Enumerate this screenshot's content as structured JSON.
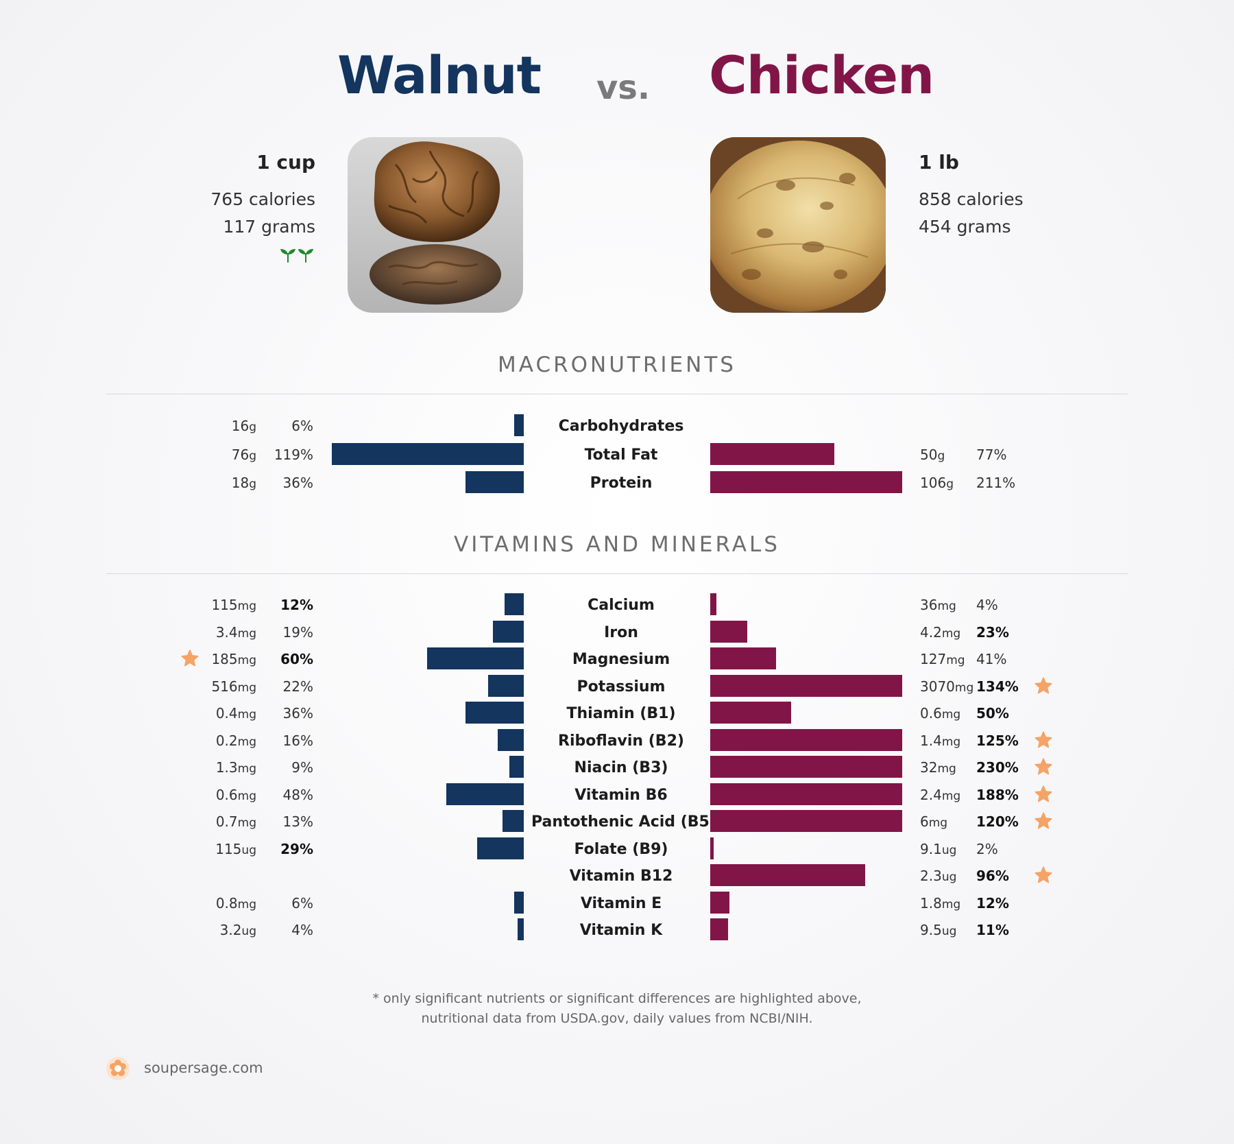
{
  "foods": {
    "left": {
      "name": "Walnut",
      "color": "#13355e",
      "serving": "1 cup",
      "calories": "765 calories",
      "grams": "117 grams",
      "badge": "vegan-sprouts-icon",
      "image": "walnut-photo"
    },
    "right": {
      "name": "Chicken",
      "color": "#821547",
      "serving": "1 lb",
      "calories": "858 calories",
      "grams": "454 grams",
      "image": "roast-chicken-photo"
    }
  },
  "vs_label": "vs.",
  "sections": {
    "macros": "MACRONUTRIENTS",
    "vitamins": "VITAMINS AND MINERALS"
  },
  "star_color": "#f5a366",
  "chart_data": [
    {
      "type": "bar",
      "title": "MACRONUTRIENTS",
      "categories": [
        "Carbohydrates",
        "Total Fat",
        "Protein"
      ],
      "series": [
        {
          "name": "Walnut",
          "amounts": [
            [
              "16",
              "g"
            ],
            [
              "76",
              "g"
            ],
            [
              "18",
              "g"
            ]
          ],
          "values": [
            6,
            119,
            36
          ],
          "labels": [
            "6%",
            "119%",
            "36%"
          ]
        },
        {
          "name": "Chicken",
          "amounts": [
            null,
            [
              "50",
              "g"
            ],
            [
              "106",
              "g"
            ]
          ],
          "values": [
            0,
            77,
            211
          ],
          "labels": [
            "",
            "77%",
            "211%"
          ]
        }
      ]
    },
    {
      "type": "bar",
      "title": "VITAMINS AND MINERALS",
      "categories": [
        "Calcium",
        "Iron",
        "Magnesium",
        "Potassium",
        "Thiamin (B1)",
        "Riboflavin (B2)",
        "Niacin (B3)",
        "Vitamin B6",
        "Pantothenic Acid (B5)",
        "Folate (B9)",
        "Vitamin B12",
        "Vitamin E",
        "Vitamin K"
      ],
      "series": [
        {
          "name": "Walnut",
          "amounts": [
            [
              "115",
              "mg"
            ],
            [
              "3.4",
              "mg"
            ],
            [
              "185",
              "mg"
            ],
            [
              "516",
              "mg"
            ],
            [
              "0.4",
              "mg"
            ],
            [
              "0.2",
              "mg"
            ],
            [
              "1.3",
              "mg"
            ],
            [
              "0.6",
              "mg"
            ],
            [
              "0.7",
              "mg"
            ],
            [
              "115",
              "ug"
            ],
            null,
            [
              "0.8",
              "mg"
            ],
            [
              "3.2",
              "ug"
            ]
          ],
          "values": [
            12,
            19,
            60,
            22,
            36,
            16,
            9,
            48,
            13,
            29,
            0,
            6,
            4
          ],
          "labels": [
            "12%",
            "19%",
            "60%",
            "22%",
            "36%",
            "16%",
            "9%",
            "48%",
            "13%",
            "29%",
            "",
            "6%",
            "4%"
          ],
          "bold": [
            true,
            false,
            true,
            false,
            false,
            false,
            false,
            false,
            false,
            true,
            false,
            false,
            false
          ],
          "star": [
            false,
            false,
            true,
            false,
            false,
            false,
            false,
            false,
            false,
            false,
            false,
            false,
            false
          ]
        },
        {
          "name": "Chicken",
          "amounts": [
            [
              "36",
              "mg"
            ],
            [
              "4.2",
              "mg"
            ],
            [
              "127",
              "mg"
            ],
            [
              "3070",
              "mg"
            ],
            [
              "0.6",
              "mg"
            ],
            [
              "1.4",
              "mg"
            ],
            [
              "32",
              "mg"
            ],
            [
              "2.4",
              "mg"
            ],
            [
              "6",
              "mg"
            ],
            [
              "9.1",
              "ug"
            ],
            [
              "2.3",
              "ug"
            ],
            [
              "1.8",
              "mg"
            ],
            [
              "9.5",
              "ug"
            ]
          ],
          "values": [
            4,
            23,
            41,
            134,
            50,
            125,
            230,
            188,
            120,
            2,
            96,
            12,
            11
          ],
          "labels": [
            "4%",
            "23%",
            "41%",
            "134%",
            "50%",
            "125%",
            "230%",
            "188%",
            "120%",
            "2%",
            "96%",
            "12%",
            "11%"
          ],
          "bold": [
            false,
            true,
            false,
            true,
            true,
            true,
            true,
            true,
            true,
            false,
            true,
            true,
            true
          ],
          "star": [
            false,
            false,
            false,
            true,
            false,
            true,
            true,
            true,
            true,
            false,
            true,
            false,
            false
          ]
        }
      ]
    }
  ],
  "footnote": {
    "line1": "* only significant nutrients or significant differences are highlighted above,",
    "line2": "nutritional data from USDA.gov, daily values from NCBI/NIH."
  },
  "brand": {
    "name": "soupersage.com",
    "icon": "soupersage-logo-icon"
  }
}
